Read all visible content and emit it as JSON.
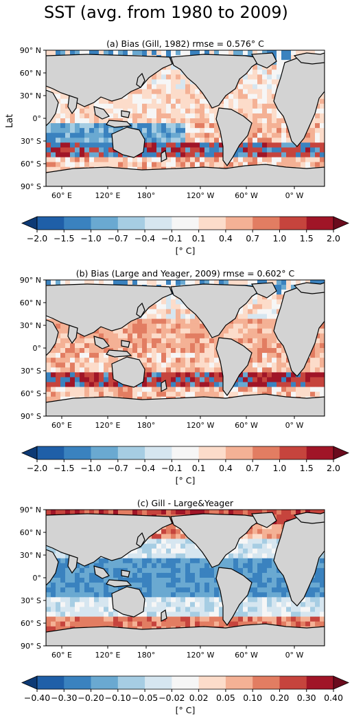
{
  "title": "SST (avg. from 1980 to 2009)",
  "ylabel": "Lat",
  "lat_ticks": [
    "90° N",
    "60° N",
    "30° N",
    "0°",
    "30° S",
    "60° S",
    "90° S"
  ],
  "lon_ticks": [
    "60° E",
    "120° E",
    "180°",
    "120° W",
    "60° W",
    "0° W"
  ],
  "colors": {
    "land": "#d3d3d3",
    "coast": "#000000",
    "ramp": [
      "#1f5fa8",
      "#3a82bf",
      "#6aa9d1",
      "#a6cde3",
      "#d6e6f0",
      "#f6f6f6",
      "#fcdcca",
      "#f4b195",
      "#e27d62",
      "#c6443d",
      "#a01527"
    ],
    "under": "#0d3a75",
    "over": "#6a0b1d"
  },
  "panels": [
    {
      "title": "(a) Bias (Gill, 1982) rmse = 0.576° C",
      "cbar_ticks": [
        "−2.0",
        "−1.5",
        "−1.0",
        "−0.7",
        "−0.4",
        "−0.1",
        "0.1",
        "0.4",
        "0.7",
        "1.0",
        "1.5",
        "2.0"
      ],
      "cbar_unit": "[° C]"
    },
    {
      "title": "(b) Bias (Large and Yeager, 2009) rmse = 0.602° C",
      "cbar_ticks": [
        "−2.0",
        "−1.5",
        "−1.0",
        "−0.7",
        "−0.4",
        "−0.1",
        "0.1",
        "0.4",
        "0.7",
        "1.0",
        "1.5",
        "2.0"
      ],
      "cbar_unit": "[° C]"
    },
    {
      "title": "(c) Gill - Large&Yeager",
      "cbar_ticks": [
        "−0.40",
        "−0.30",
        "−0.20",
        "−0.10",
        "−0.05",
        "−0.02",
        "0.02",
        "0.05",
        "0.10",
        "0.20",
        "0.30",
        "0.40"
      ],
      "cbar_unit": "[° C]"
    }
  ]
}
